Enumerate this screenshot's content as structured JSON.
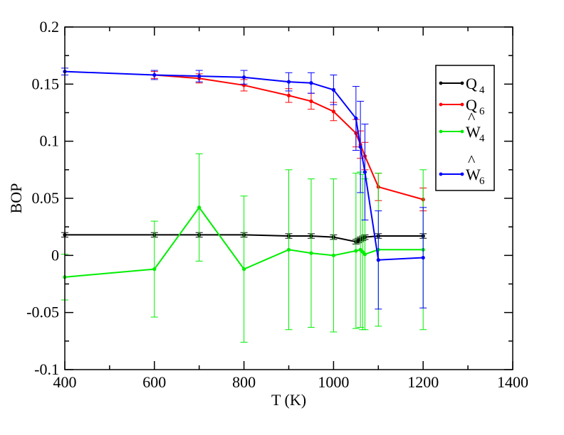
{
  "chart_data": {
    "type": "line",
    "title": "",
    "xlabel": "T (K)",
    "ylabel": "BOP",
    "xlim": [
      400,
      1400
    ],
    "ylim": [
      -0.1,
      0.2
    ],
    "xticks": [
      400,
      600,
      800,
      1000,
      1200,
      1400
    ],
    "yticks": [
      -0.1,
      -0.05,
      0,
      0.05,
      0.1,
      0.15,
      0.2
    ],
    "xtick_labels": [
      "400",
      "600",
      "800",
      "1000",
      "1200",
      "1400"
    ],
    "ytick_labels": [
      "-0.1",
      "-0.05",
      "0",
      "0.05",
      "0.1",
      "0.15",
      "0.2"
    ],
    "grid": false,
    "legend_position": "top-right",
    "series": [
      {
        "name": "Q4",
        "legend_base": "Q",
        "legend_sub": "4",
        "hat": false,
        "color": "#000000",
        "x": [
          400,
          600,
          700,
          800,
          900,
          950,
          1000,
          1050,
          1055,
          1060,
          1065,
          1070,
          1100,
          1200
        ],
        "y": [
          0.018,
          0.018,
          0.018,
          0.018,
          0.017,
          0.017,
          0.016,
          0.012,
          0.013,
          0.014,
          0.015,
          0.016,
          0.017,
          0.017
        ],
        "err": [
          0.002,
          0.002,
          0.002,
          0.002,
          0.002,
          0.002,
          0.002,
          0.002,
          0.002,
          0.002,
          0.002,
          0.002,
          0.002,
          0.002
        ]
      },
      {
        "name": "Q6",
        "legend_base": "Q",
        "legend_sub": "6",
        "hat": false,
        "color": "#ff0000",
        "x": [
          600,
          700,
          800,
          900,
          950,
          1000,
          1050,
          1060,
          1070,
          1100,
          1200
        ],
        "y": [
          0.158,
          0.155,
          0.149,
          0.14,
          0.135,
          0.126,
          0.107,
          0.097,
          0.087,
          0.06,
          0.049
        ],
        "err": [
          0.003,
          0.004,
          0.005,
          0.006,
          0.007,
          0.008,
          0.012,
          0.012,
          0.012,
          0.012,
          0.01
        ]
      },
      {
        "name": "W4",
        "legend_base": "W",
        "legend_sub": "4",
        "hat": true,
        "color": "#00ee00",
        "x": [
          400,
          600,
          700,
          800,
          900,
          950,
          1000,
          1050,
          1060,
          1065,
          1070,
          1100,
          1200
        ],
        "y": [
          -0.019,
          -0.012,
          0.042,
          -0.012,
          0.005,
          0.002,
          0.0,
          0.004,
          0.005,
          0.003,
          0.001,
          0.005,
          0.005
        ],
        "err": [
          0.02,
          0.042,
          0.047,
          0.064,
          0.07,
          0.065,
          0.067,
          0.068,
          0.068,
          0.068,
          0.066,
          0.067,
          0.07
        ]
      },
      {
        "name": "W6",
        "legend_base": "W",
        "legend_sub": "6",
        "hat": true,
        "color": "#0000ff",
        "x": [
          400,
          600,
          700,
          800,
          900,
          950,
          1000,
          1050,
          1060,
          1070,
          1100,
          1200
        ],
        "y": [
          0.161,
          0.158,
          0.157,
          0.156,
          0.152,
          0.151,
          0.145,
          0.12,
          0.095,
          0.073,
          -0.004,
          -0.002
        ],
        "err": [
          0.003,
          0.004,
          0.005,
          0.006,
          0.008,
          0.009,
          0.013,
          0.028,
          0.04,
          0.042,
          0.043,
          0.044
        ]
      }
    ]
  }
}
